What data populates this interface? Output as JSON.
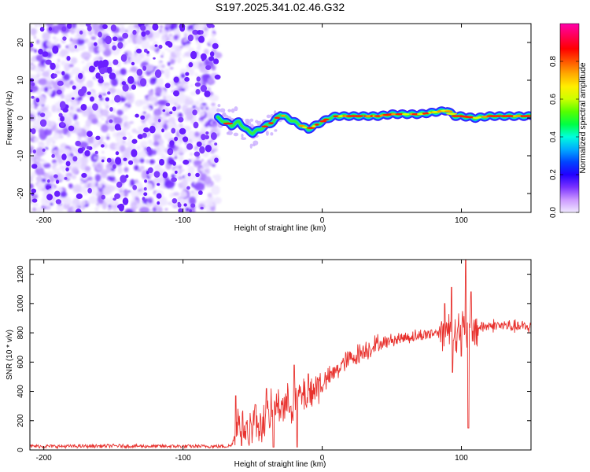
{
  "title": "S197.2025.341.02.46.G32",
  "chart_data": [
    {
      "type": "heatmap",
      "name": "spectrogram",
      "xlabel": "Height of straight line (km)",
      "ylabel": "Frequency (Hz)",
      "xlim": [
        -210,
        150
      ],
      "ylim": [
        -25,
        25
      ],
      "xticks": [
        -200,
        -100,
        0,
        100
      ],
      "yticks": [
        -20,
        -10,
        0,
        10,
        20
      ],
      "noise_region_x": [
        -210,
        -75
      ],
      "ridge": {
        "x": [
          -75,
          -70,
          -65,
          -60,
          -55,
          -50,
          -45,
          -40,
          -35,
          -30,
          -25,
          -20,
          -15,
          -10,
          -5,
          0,
          5,
          10,
          20,
          30,
          40,
          50,
          60,
          70,
          80,
          90,
          95,
          100,
          110,
          120,
          130,
          140,
          150
        ],
        "y": [
          0,
          -1,
          -2,
          -1,
          -3,
          -4,
          -3,
          -2,
          -1,
          1,
          0,
          -1,
          -2,
          -3,
          -2,
          -1,
          0,
          0.5,
          0.5,
          0.5,
          0.5,
          1,
          1,
          1,
          1.5,
          2,
          0.5,
          0.5,
          0,
          0.5,
          0.5,
          0.5,
          0.5
        ]
      },
      "colorbar": {
        "label": "Normalized spectral amplitude",
        "ticks": [
          0.0,
          0.2,
          0.4,
          0.6,
          0.8
        ],
        "tick_labels": [
          "0.0",
          "0.2",
          "0.4",
          "0.6",
          "0.8"
        ],
        "colors": [
          "#f0e8ff",
          "#cc99ff",
          "#7a33ff",
          "#2200ff",
          "#0044ff",
          "#00aaff",
          "#00ffdd",
          "#00ff44",
          "#55ff00",
          "#ccff00",
          "#ffee00",
          "#ffaa00",
          "#ff5500",
          "#ff0000",
          "#ff0055",
          "#ff00aa"
        ]
      }
    },
    {
      "type": "line",
      "name": "snr",
      "xlabel": "Height of straight line (km)",
      "ylabel": "SNR (10 * v/v)",
      "xlim": [
        -210,
        150
      ],
      "ylim": [
        0,
        1300
      ],
      "xticks": [
        -200,
        -100,
        0,
        100
      ],
      "yticks": [
        0,
        200,
        400,
        600,
        800,
        1000,
        1200
      ],
      "line_color": "#e8322e",
      "series": [
        {
          "name": "SNR",
          "x": [
            -210,
            -180,
            -150,
            -120,
            -90,
            -80,
            -70,
            -65,
            -60,
            -55,
            -50,
            -45,
            -40,
            -35,
            -30,
            -25,
            -20,
            -15,
            -10,
            -5,
            0,
            5,
            10,
            15,
            20,
            25,
            30,
            40,
            50,
            60,
            70,
            80,
            90,
            95,
            100,
            105,
            110,
            120,
            130,
            140,
            150
          ],
          "y": [
            25,
            25,
            28,
            25,
            25,
            25,
            25,
            30,
            200,
            130,
            170,
            180,
            200,
            280,
            320,
            300,
            350,
            370,
            390,
            420,
            460,
            490,
            540,
            590,
            620,
            650,
            680,
            720,
            750,
            770,
            780,
            800,
            820,
            810,
            840,
            800,
            830,
            850,
            850,
            840,
            840
          ]
        }
      ],
      "spikes": [
        {
          "x": -62,
          "y": 370
        },
        {
          "x": -58,
          "y": 30
        },
        {
          "x": -48,
          "y": 310
        },
        {
          "x": -40,
          "y": 420
        },
        {
          "x": -35,
          "y": 20
        },
        {
          "x": -20,
          "y": 580
        },
        {
          "x": -18,
          "y": 20
        },
        {
          "x": -10,
          "y": 520
        },
        {
          "x": 88,
          "y": 1000
        },
        {
          "x": 93,
          "y": 1110
        },
        {
          "x": 93.5,
          "y": 530
        },
        {
          "x": 100,
          "y": 640
        },
        {
          "x": 103,
          "y": 1300
        },
        {
          "x": 105,
          "y": 150
        },
        {
          "x": 107,
          "y": 1080
        }
      ]
    }
  ]
}
